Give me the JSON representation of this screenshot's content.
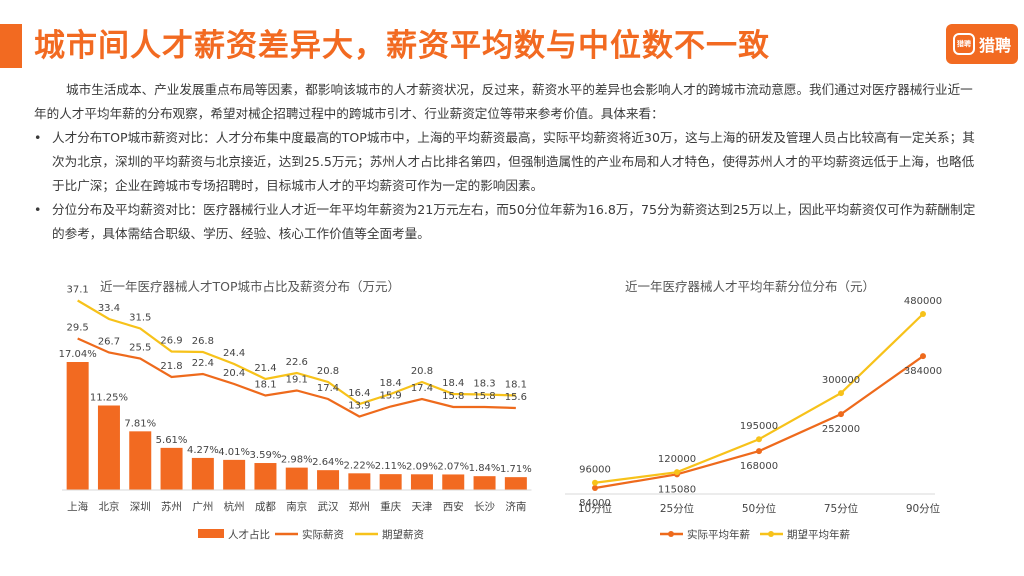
{
  "page": {
    "title": "城市间人才薪资差异大，薪资平均数与中位数不一致",
    "logo_mark": "猎聘",
    "logo_text": "猎聘"
  },
  "text": {
    "intro": "城市生活成本、产业发展重点布局等因素，都影响该城市的人才薪资状况，反过来，薪资水平的差异也会影响人才的跨城市流动意愿。我们通过对医疗器械行业近一年的人才平均年薪的分布观察，希望对械企招聘过程中的跨城市引才、行业薪资定位等带来参考价值。具体来看：",
    "b1_lead": "人才分布TOP城市薪资对比",
    "b1_body": "：人才分布集中度最高的TOP城市中，上海的平均薪资最高，实际平均薪资将近30万，这与上海的研发及管理人员占比较高有一定关系；其次为北京，深圳的平均薪资与北京接近，达到25.5万元；苏州人才占比排名第四，但强制造属性的产业布局和人才特色，使得苏州人才的平均薪资远低于上海，也略低于比广深；企业在跨城市专场招聘时，目标城市人才的平均薪资可作为一定的影响因素。",
    "b2_lead": "分位分布及平均薪资对比",
    "b2_body": "：医疗器械行业人才近一年平均年薪资为21万元左右，而50分位年薪为16.8万，75分为薪资达到25万以上，因此平均薪资仅可作为薪酬制定的参考，具体需结合职级、学历、经验、核心工作价值等全面考量。"
  },
  "chart_data": [
    {
      "type": "bar",
      "title": "近一年医疗器械人才TOP城市占比及薪资分布（万元）",
      "categories": [
        "上海",
        "北京",
        "深圳",
        "苏州",
        "广州",
        "杭州",
        "成都",
        "南京",
        "武汉",
        "郑州",
        "重庆",
        "天津",
        "西安",
        "长沙",
        "济南"
      ],
      "series": [
        {
          "name": "人才占比",
          "kind": "bar",
          "color": "#f26a21",
          "values": [
            17.04,
            11.25,
            7.81,
            5.61,
            4.27,
            4.01,
            3.59,
            2.98,
            2.64,
            2.22,
            2.11,
            2.09,
            2.07,
            1.84,
            1.71
          ],
          "labels": [
            "17.04%",
            "11.25%",
            "7.81%",
            "5.61%",
            "4.27%",
            "4.01%",
            "3.59%",
            "2.98%",
            "2.64%",
            "2.22%",
            "2.11%",
            "2.09%",
            "2.07%",
            "1.84%",
            "1.71%"
          ]
        },
        {
          "name": "实际薪资",
          "kind": "line",
          "color": "#ee6a1c",
          "values": [
            29.5,
            26.7,
            25.5,
            21.8,
            22.4,
            20.4,
            18.1,
            19.1,
            17.4,
            13.9,
            15.9,
            17.4,
            15.8,
            15.8,
            15.6
          ]
        },
        {
          "name": "期望薪资",
          "kind": "line",
          "color": "#f7c21a",
          "values": [
            37.1,
            33.4,
            31.5,
            26.9,
            26.8,
            24.4,
            21.4,
            22.6,
            20.8,
            16.4,
            18.4,
            20.8,
            18.4,
            18.3,
            18.1
          ]
        }
      ],
      "legend_position": "bottom",
      "grid": false
    },
    {
      "type": "line",
      "title": "近一年医疗器械人才平均年薪分位分布（元）",
      "categories": [
        "10分位",
        "25分位",
        "50分位",
        "75分位",
        "90分位"
      ],
      "series": [
        {
          "name": "实际平均年薪",
          "color": "#ee6a1c",
          "values": [
            84000,
            115080,
            168000,
            252000,
            384000
          ]
        },
        {
          "name": "期望平均年薪",
          "color": "#f7c21a",
          "values": [
            96000,
            120000,
            195000,
            300000,
            480000
          ]
        }
      ],
      "legend_position": "bottom",
      "grid": false
    }
  ]
}
